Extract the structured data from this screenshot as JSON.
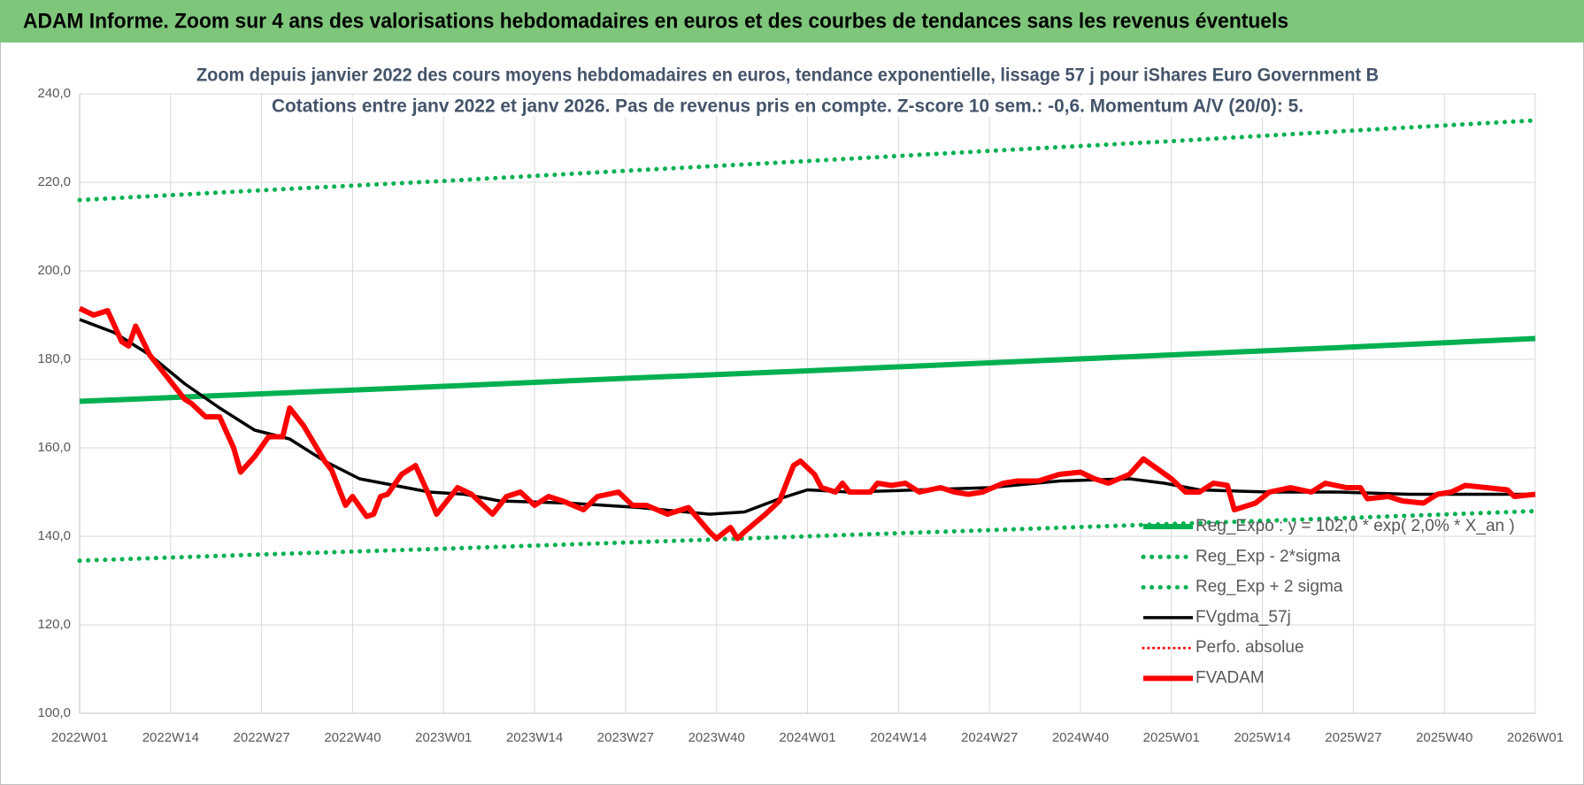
{
  "header": {
    "title": "ADAM Informe. Zoom sur 4 ans des valorisations hebdomadaires en euros et des courbes de tendances sans les revenus éventuels"
  },
  "chart_data": {
    "type": "line",
    "title": "Zoom depuis janvier 2022 des cours moyens hebdomadaires en euros, tendance exponentielle, lissage 57 j pour iShares Euro Government B",
    "subtitle": "Cotations entre janv 2022 et janv 2026. Pas de revenus pris en compte. Z-score 10 sem.: -0,6. Momentum A/V (20/0): 5.",
    "xlim": [
      0,
      208
    ],
    "xticks": [
      {
        "value": 0,
        "label": "2022W01"
      },
      {
        "value": 13,
        "label": "2022W14"
      },
      {
        "value": 26,
        "label": "2022W27"
      },
      {
        "value": 39,
        "label": "2022W40"
      },
      {
        "value": 52,
        "label": "2023W01"
      },
      {
        "value": 65,
        "label": "2023W14"
      },
      {
        "value": 78,
        "label": "2023W27"
      },
      {
        "value": 91,
        "label": "2023W40"
      },
      {
        "value": 104,
        "label": "2024W01"
      },
      {
        "value": 117,
        "label": "2024W14"
      },
      {
        "value": 130,
        "label": "2024W27"
      },
      {
        "value": 143,
        "label": "2024W40"
      },
      {
        "value": 156,
        "label": "2025W01"
      },
      {
        "value": 169,
        "label": "2025W14"
      },
      {
        "value": 182,
        "label": "2025W27"
      },
      {
        "value": 195,
        "label": "2025W40"
      },
      {
        "value": 208,
        "label": "2026W01"
      }
    ],
    "ylim": [
      100,
      240
    ],
    "yticks": [
      {
        "value": 100,
        "label": "100,0"
      },
      {
        "value": 120,
        "label": "120,0"
      },
      {
        "value": 140,
        "label": "140,0"
      },
      {
        "value": 160,
        "label": "160,0"
      },
      {
        "value": 180,
        "label": "180,0"
      },
      {
        "value": 200,
        "label": "200,0"
      },
      {
        "value": 220,
        "label": "220,0"
      },
      {
        "value": 240,
        "label": "240,0"
      }
    ],
    "grid": true,
    "legend": "lower right",
    "series": [
      {
        "name": "Reg_Expo : y = 102,0 * exp( 2,0% *  X_an )",
        "color": "#00b050",
        "style": "solid",
        "width": 6,
        "x": [
          0,
          26,
          52,
          78,
          104,
          130,
          156,
          182,
          208
        ],
        "values": [
          170.5,
          172.2,
          173.9,
          175.7,
          177.4,
          179.2,
          181.0,
          182.8,
          184.7
        ]
      },
      {
        "name": "Reg_Exp - 2*sigma",
        "color": "#00b050",
        "style": "dotted",
        "width": 5,
        "x": [
          0,
          26,
          52,
          78,
          104,
          130,
          156,
          182,
          208
        ],
        "values": [
          134.5,
          135.9,
          137.2,
          138.6,
          140.0,
          141.4,
          142.8,
          144.2,
          145.7
        ]
      },
      {
        "name": "Reg_Exp + 2 sigma",
        "color": "#00b050",
        "style": "dotted",
        "width": 5,
        "x": [
          0,
          26,
          52,
          78,
          104,
          130,
          156,
          182,
          208
        ],
        "values": [
          216.0,
          218.2,
          220.3,
          222.6,
          224.8,
          227.1,
          229.3,
          231.7,
          234.0
        ]
      },
      {
        "name": "FVgdma_57j",
        "color": "#000000",
        "style": "solid",
        "width": 3.5,
        "x": [
          0,
          5,
          10,
          15,
          20,
          25,
          30,
          35,
          40,
          45,
          50,
          55,
          60,
          70,
          80,
          90,
          95,
          100,
          104,
          110,
          120,
          130,
          140,
          150,
          155,
          160,
          170,
          180,
          190,
          200,
          208
        ],
        "values": [
          189,
          186,
          181,
          174.5,
          169,
          164,
          162,
          157,
          153,
          151.5,
          150,
          149.5,
          148,
          147.5,
          146.5,
          145,
          145.5,
          148.5,
          150.5,
          150,
          150.5,
          151,
          152.5,
          153,
          152,
          150.5,
          150,
          150,
          149.5,
          149.5,
          149.5
        ]
      },
      {
        "name": "Perfo. absolue",
        "color": "#ff0000",
        "style": "dotted",
        "width": 3
      },
      {
        "name": "FVADAM",
        "color": "#ff0000",
        "style": "solid",
        "width": 6,
        "x": [
          0,
          2,
          4,
          6,
          7,
          8,
          10,
          12,
          15,
          16,
          18,
          20,
          22,
          23,
          25,
          27,
          29,
          30,
          32,
          35,
          36,
          38,
          39,
          41,
          42,
          43,
          44,
          46,
          48,
          50,
          51,
          54,
          56,
          59,
          61,
          63,
          65,
          67,
          69,
          72,
          74,
          77,
          79,
          81,
          84,
          87,
          90,
          91,
          93,
          94,
          95,
          98,
          100,
          102,
          103,
          105,
          106,
          108,
          109,
          110,
          113,
          114,
          116,
          118,
          120,
          123,
          125,
          127,
          129,
          132,
          134,
          137,
          140,
          143,
          145,
          147,
          150,
          152,
          156,
          158,
          160,
          162,
          164,
          165,
          168,
          170,
          173,
          176,
          178,
          181,
          183,
          184,
          187,
          189,
          192,
          194,
          196,
          198,
          201,
          204,
          205,
          208
        ],
        "values": [
          191.5,
          190,
          191,
          184,
          183,
          187.5,
          181,
          177,
          171,
          170,
          167,
          167,
          160,
          154.5,
          158,
          162.5,
          162.5,
          169,
          165,
          157,
          155,
          147,
          149,
          144.5,
          145,
          149,
          149.5,
          154,
          156,
          149,
          145,
          151,
          149.5,
          145,
          149,
          150,
          147,
          149,
          148,
          146,
          149,
          150,
          147,
          147,
          145,
          146.5,
          141,
          139.5,
          142,
          139.5,
          141,
          145,
          148,
          156,
          157,
          154,
          151,
          150,
          152,
          150,
          150,
          152,
          151.5,
          152,
          150,
          151,
          150,
          149.5,
          150,
          152,
          152.5,
          152.5,
          154,
          154.5,
          153,
          152,
          154,
          157.5,
          153,
          150,
          150,
          152,
          151.5,
          146,
          147.5,
          150,
          151,
          150,
          152,
          151,
          151,
          148.5,
          149,
          148,
          147.5,
          149.5,
          150,
          151.5,
          151,
          150.5,
          149,
          149.5
        ]
      }
    ]
  }
}
